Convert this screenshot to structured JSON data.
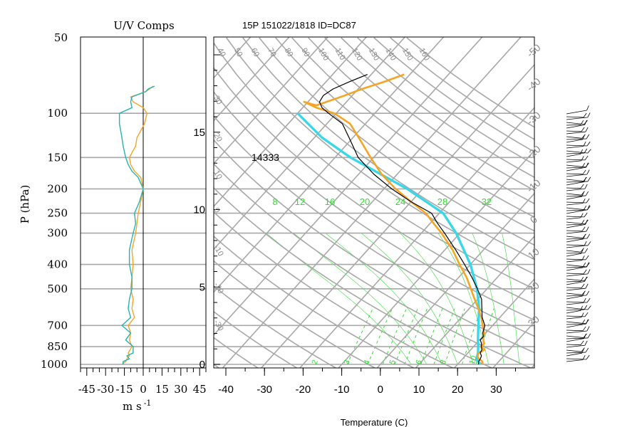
{
  "title": "15P 151022/1818 ID=DC87",
  "uv_panel": {
    "title": "U/V Comps",
    "xlabel_main": "m s",
    "xlabel_exp": "-1",
    "x_ticks": [
      "-45",
      "-30",
      "-15",
      "0",
      "15",
      "30",
      "45"
    ],
    "xlim": [
      -50,
      50
    ]
  },
  "pressure_axis": {
    "label": "P (hPa)",
    "ticks": [
      "50",
      "100",
      "150",
      "200",
      "250",
      "300",
      "400",
      "500",
      "700",
      "850",
      "1000"
    ]
  },
  "height_axis": {
    "ticks": [
      "0",
      "5",
      "10",
      "15"
    ]
  },
  "temperature_axis": {
    "label": "Temperature (C)",
    "ticks": [
      "-40",
      "-30",
      "-20",
      "-10",
      "0",
      "10",
      "20",
      "30"
    ],
    "xlim": [
      -43,
      37
    ]
  },
  "annotation": "14333",
  "mixing_ratio_labels": [
    "8",
    "12",
    "16",
    "20",
    "24",
    "28",
    "32"
  ],
  "theta_labels_top": [
    "40",
    "50",
    "60",
    "70",
    "80",
    "90",
    "100",
    "110",
    "120",
    "130",
    "140",
    "150",
    "160"
  ],
  "theta_labels_left": [
    "30",
    "20",
    "10",
    "0",
    "-10",
    "-20",
    "-30"
  ],
  "right_edge_labels": [
    "-50",
    "-40",
    "-30",
    "-20",
    "-10",
    "0",
    "10",
    "20",
    "30"
  ],
  "bottom_mixing_labels": [
    "2",
    "3",
    "4",
    "5",
    "6",
    "8",
    "10"
  ],
  "colors": {
    "temperature": "#f5a524",
    "dewpoint": "#000000",
    "parcel": "#38d8e8",
    "grid": "#a8a8a8",
    "mixing": "#33dd33",
    "u_comp": "#f5a524",
    "v_comp": "#26b3b3"
  },
  "chart_data": {
    "type": "line",
    "title": "15P 151022/1818 ID=DC87",
    "xlabel": "Temperature (C)",
    "ylabel": "P (hPa)",
    "ylim": [
      1000,
      50
    ],
    "series": [
      {
        "name": "",
        "kind": "temperature",
        "points": [
          [
            1000,
            26.5
          ],
          [
            975,
            25.8
          ],
          [
            950,
            24.2
          ],
          [
            925,
            23.2
          ],
          [
            900,
            22.8
          ],
          [
            875,
            23.6
          ],
          [
            850,
            21.9
          ],
          [
            825,
            22.0
          ],
          [
            800,
            21.0
          ],
          [
            775,
            20.2
          ],
          [
            750,
            19.6
          ],
          [
            700,
            17.4
          ],
          [
            650,
            15.2
          ],
          [
            600,
            12.4
          ],
          [
            550,
            9.2
          ],
          [
            500,
            5.8
          ],
          [
            450,
            2.0
          ],
          [
            400,
            -2.8
          ],
          [
            350,
            -8.0
          ],
          [
            300,
            -14.8
          ],
          [
            275,
            -19.0
          ],
          [
            250,
            -23.5
          ],
          [
            225,
            -30.0
          ],
          [
            200,
            -37.0
          ],
          [
            175,
            -44.0
          ],
          [
            150,
            -50.8
          ],
          [
            125,
            -58.5
          ],
          [
            110,
            -64.0
          ],
          [
            100,
            -70.5
          ],
          [
            95,
            -76.5
          ],
          [
            90,
            -81.0
          ],
          [
            93,
            -77.0
          ],
          [
            85,
            -72.0
          ],
          [
            80,
            -69.0
          ],
          [
            75,
            -65.0
          ],
          [
            70,
            -61.5
          ]
        ]
      },
      {
        "name": "",
        "kind": "dewpoint",
        "points": [
          [
            1000,
            25.4
          ],
          [
            975,
            24.8
          ],
          [
            950,
            24.6
          ],
          [
            925,
            24.2
          ],
          [
            900,
            23.2
          ],
          [
            875,
            22.9
          ],
          [
            850,
            22.0
          ],
          [
            825,
            21.3
          ],
          [
            800,
            20.2
          ],
          [
            775,
            20.2
          ],
          [
            750,
            19.2
          ],
          [
            700,
            18.0
          ],
          [
            650,
            15.4
          ],
          [
            600,
            13.3
          ],
          [
            550,
            11.0
          ],
          [
            500,
            7.5
          ],
          [
            450,
            3.4
          ],
          [
            400,
            -1.5
          ],
          [
            350,
            -7.2
          ],
          [
            300,
            -14.0
          ],
          [
            275,
            -18.0
          ],
          [
            250,
            -22.0
          ],
          [
            225,
            -30.0
          ],
          [
            200,
            -38.0
          ],
          [
            175,
            -46.0
          ],
          [
            150,
            -54.0
          ],
          [
            125,
            -61.0
          ],
          [
            110,
            -66.0
          ],
          [
            100,
            -72.0
          ],
          [
            95,
            -75.0
          ],
          [
            90,
            -77.0
          ],
          [
            85,
            -77.5
          ],
          [
            80,
            -76.5
          ],
          [
            75,
            -74.0
          ],
          [
            70,
            -71.0
          ]
        ]
      },
      {
        "name": "",
        "kind": "parcel",
        "points": [
          [
            1000,
            25.8
          ],
          [
            950,
            23.6
          ],
          [
            900,
            22.6
          ],
          [
            850,
            21.2
          ],
          [
            800,
            19.6
          ],
          [
            700,
            16.3
          ],
          [
            600,
            12.6
          ],
          [
            500,
            7.4
          ],
          [
            400,
            0.0
          ],
          [
            300,
            -11.0
          ],
          [
            250,
            -19.0
          ],
          [
            200,
            -34.0
          ],
          [
            150,
            -56.0
          ],
          [
            125,
            -68.0
          ],
          [
            100,
            -80.0
          ]
        ]
      }
    ],
    "uv_series": [
      {
        "name": "",
        "component": "u",
        "points": [
          [
            1000,
            -17
          ],
          [
            975,
            -14
          ],
          [
            950,
            -13
          ],
          [
            925,
            -11
          ],
          [
            900,
            -12
          ],
          [
            850,
            -9
          ],
          [
            800,
            -11
          ],
          [
            750,
            -10
          ],
          [
            700,
            -12
          ],
          [
            650,
            -7
          ],
          [
            600,
            -9
          ],
          [
            550,
            -8
          ],
          [
            500,
            -10
          ],
          [
            450,
            -9
          ],
          [
            400,
            -8
          ],
          [
            350,
            -9
          ],
          [
            300,
            -6
          ],
          [
            275,
            -5
          ],
          [
            250,
            -4
          ],
          [
            225,
            -2
          ],
          [
            200,
            0
          ],
          [
            180,
            -2
          ],
          [
            170,
            -7
          ],
          [
            160,
            -10
          ],
          [
            150,
            -11
          ],
          [
            135,
            -6
          ],
          [
            125,
            -5
          ],
          [
            110,
            1
          ],
          [
            100,
            3
          ],
          [
            95,
            0
          ],
          [
            90,
            -8
          ],
          [
            86,
            -10
          ],
          [
            82,
            2
          ],
          [
            80,
            5
          ],
          [
            78,
            8
          ]
        ]
      },
      {
        "name": "",
        "component": "v",
        "points": [
          [
            1000,
            -16
          ],
          [
            975,
            -16
          ],
          [
            950,
            -11
          ],
          [
            925,
            -13
          ],
          [
            900,
            -8
          ],
          [
            850,
            -8
          ],
          [
            800,
            -14
          ],
          [
            750,
            -10
          ],
          [
            700,
            -17
          ],
          [
            650,
            -10
          ],
          [
            600,
            -12
          ],
          [
            550,
            -11
          ],
          [
            500,
            -9
          ],
          [
            450,
            -9
          ],
          [
            400,
            -11
          ],
          [
            350,
            -11
          ],
          [
            300,
            -8
          ],
          [
            275,
            -6
          ],
          [
            250,
            -7
          ],
          [
            225,
            -3
          ],
          [
            200,
            0
          ],
          [
            180,
            -4
          ],
          [
            170,
            -9
          ],
          [
            160,
            -12
          ],
          [
            150,
            -14
          ],
          [
            135,
            -16
          ],
          [
            125,
            -17
          ],
          [
            110,
            -19
          ],
          [
            100,
            -19
          ],
          [
            95,
            -9
          ],
          [
            90,
            -10
          ],
          [
            86,
            -9
          ],
          [
            82,
            2
          ],
          [
            80,
            4
          ],
          [
            78,
            9
          ]
        ]
      }
    ]
  }
}
